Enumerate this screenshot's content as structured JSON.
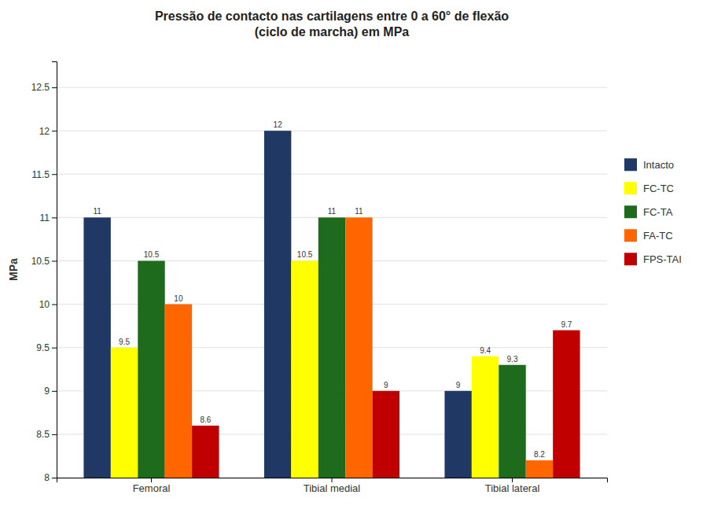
{
  "chart_data": {
    "type": "bar",
    "title": "Pressão de contacto nas cartilagens entre 0 a 60° de flexão\n(ciclo de marcha) em MPa",
    "y_label": "MPa",
    "categories": [
      "Femoral",
      "Tibial medial",
      "Tibial lateral"
    ],
    "series": [
      {
        "name": "Intacto",
        "color": "#1F3864",
        "values": [
          11.0,
          12.0,
          9.0
        ]
      },
      {
        "name": "FC-TC",
        "color": "#FFFF00",
        "values": [
          9.5,
          10.5,
          9.4
        ]
      },
      {
        "name": "FC-TA",
        "color": "#1E6B1E",
        "values": [
          10.5,
          11.0,
          9.3
        ]
      },
      {
        "name": "FA-TC",
        "color": "#FF6600",
        "values": [
          10.0,
          11.0,
          8.2
        ]
      },
      {
        "name": "FPS-TAI",
        "color": "#C00000",
        "values": [
          8.6,
          9.0,
          9.7
        ]
      }
    ],
    "ylim": [
      8.0,
      12.8
    ],
    "yticks": [
      8,
      8.5,
      9,
      9.5,
      10,
      10.5,
      11,
      11.5,
      12,
      12.5
    ],
    "grid": true,
    "legend": "right",
    "data_labels": true
  }
}
